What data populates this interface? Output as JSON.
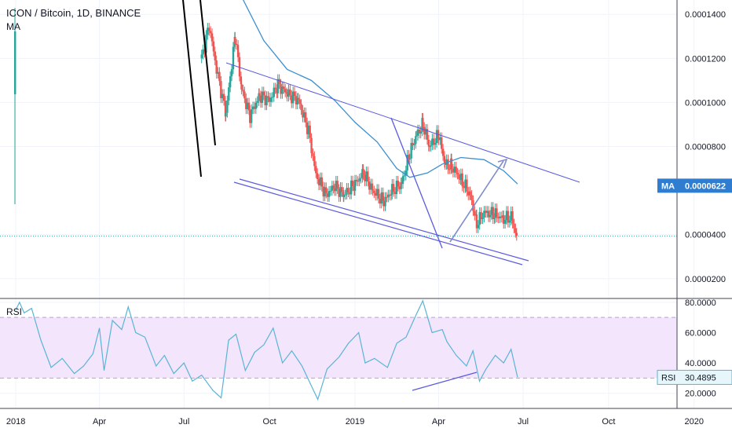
{
  "header": {
    "title": "ICON / Bitcoin, 1D, BINANCE",
    "indicator": "MA"
  },
  "rsi_panel": {
    "label": "RSI"
  },
  "colors": {
    "up": "#26a69a",
    "down": "#ef5350",
    "ma": "#3c8fd0",
    "drawing": "#5b5bdf",
    "rsi": "#5ab4d6",
    "rsi_band": "#f3e5fb",
    "badge": "#2e7dd1"
  },
  "chart_data": [
    {
      "type": "candlestick",
      "title": "ICON / Bitcoin, 1D, BINANCE",
      "y_tick_labels": [
        "0.0001400",
        "0.0001200",
        "0.0001000",
        "0.0000800",
        "0.0000400",
        "0.0000200"
      ],
      "y_ticks": [
        0.00014,
        0.00012,
        0.0001,
        8e-05,
        4e-05,
        2e-05
      ],
      "x_tick_labels": [
        "2018",
        "Apr",
        "Jul",
        "Oct",
        "2019",
        "Apr",
        "Jul",
        "Oct",
        "2020"
      ],
      "x_ticks": [
        "2018-01-01",
        "2018-04-01",
        "2018-07-01",
        "2018-10-01",
        "2019-01-01",
        "2019-04-01",
        "2019-07-01",
        "2019-10-01",
        "2020-01-01"
      ],
      "ylim": [
        1.1e-05,
        0.0001465
      ],
      "xlim": [
        "2017-12-15",
        "2020-04-15"
      ],
      "ma_label": "MA",
      "ma_value_label": "0.0000622",
      "current_price": 3.93e-05,
      "price_path": [
        [
          "2018-07-20",
          0.00012
        ],
        [
          "2018-07-28",
          0.000135
        ],
        [
          "2018-08-05",
          0.000115
        ],
        [
          "2018-08-15",
          9.5e-05
        ],
        [
          "2018-08-25",
          0.00013
        ],
        [
          "2018-09-01",
          0.000106
        ],
        [
          "2018-09-10",
          9.4e-05
        ],
        [
          "2018-09-20",
          0.000103
        ],
        [
          "2018-10-01",
          0.000101
        ],
        [
          "2018-10-10",
          0.000108
        ],
        [
          "2018-10-20",
          0.000104
        ],
        [
          "2018-11-01",
          0.000101
        ],
        [
          "2018-11-12",
          8.7e-05
        ],
        [
          "2018-11-20",
          6.7e-05
        ],
        [
          "2018-12-01",
          5.8e-05
        ],
        [
          "2018-12-10",
          6.2e-05
        ],
        [
          "2018-12-20",
          5.8e-05
        ],
        [
          "2019-01-01",
          6.3e-05
        ],
        [
          "2019-01-10",
          6.8e-05
        ],
        [
          "2019-01-20",
          6e-05
        ],
        [
          "2019-02-01",
          5.5e-05
        ],
        [
          "2019-02-10",
          6e-05
        ],
        [
          "2019-02-20",
          6.3e-05
        ],
        [
          "2019-03-01",
          7.7e-05
        ],
        [
          "2019-03-08",
          8.5e-05
        ],
        [
          "2019-03-15",
          9e-05
        ],
        [
          "2019-03-22",
          8e-05
        ],
        [
          "2019-04-01",
          8.5e-05
        ],
        [
          "2019-04-08",
          7.2e-05
        ],
        [
          "2019-04-15",
          7.1e-05
        ],
        [
          "2019-04-25",
          6.5e-05
        ],
        [
          "2019-05-05",
          5.8e-05
        ],
        [
          "2019-05-12",
          4.5e-05
        ],
        [
          "2019-05-20",
          5e-05
        ],
        [
          "2019-06-01",
          4.9e-05
        ],
        [
          "2019-06-10",
          4.7e-05
        ],
        [
          "2019-06-18",
          4.8e-05
        ],
        [
          "2019-06-24",
          3.93e-05
        ]
      ],
      "ma_path": [
        [
          "2018-09-01",
          0.000148
        ],
        [
          "2018-09-25",
          0.000128
        ],
        [
          "2018-10-20",
          0.000115
        ],
        [
          "2018-11-15",
          0.00011
        ],
        [
          "2018-12-10",
          0.000101
        ],
        [
          "2019-01-01",
          9.1e-05
        ],
        [
          "2019-01-25",
          8.2e-05
        ],
        [
          "2019-02-15",
          7e-05
        ],
        [
          "2019-03-01",
          6.6e-05
        ],
        [
          "2019-03-20",
          6.8e-05
        ],
        [
          "2019-04-05",
          7.2e-05
        ],
        [
          "2019-04-25",
          7.5e-05
        ],
        [
          "2019-05-20",
          7.4e-05
        ],
        [
          "2019-06-10",
          6.9e-05
        ],
        [
          "2019-06-25",
          6.3e-05
        ]
      ]
    },
    {
      "type": "line",
      "title": "RSI",
      "y_tick_labels": [
        "80.0000",
        "60.0000",
        "40.0000",
        "20.0000"
      ],
      "y_ticks": [
        80,
        60,
        40,
        20
      ],
      "ylim": [
        10,
        82
      ],
      "band": [
        30,
        70
      ],
      "value_label": "RSI",
      "value": "30.4895",
      "values": [
        [
          "2018-01-01",
          75
        ],
        [
          "2018-01-05",
          80
        ],
        [
          "2018-01-10",
          73
        ],
        [
          "2018-01-18",
          76
        ],
        [
          "2018-01-28",
          55
        ],
        [
          "2018-02-08",
          37
        ],
        [
          "2018-02-20",
          43
        ],
        [
          "2018-03-05",
          33
        ],
        [
          "2018-03-15",
          38
        ],
        [
          "2018-03-25",
          46
        ],
        [
          "2018-04-01",
          63
        ],
        [
          "2018-04-06",
          35
        ],
        [
          "2018-04-15",
          68
        ],
        [
          "2018-04-25",
          62
        ],
        [
          "2018-05-02",
          77
        ],
        [
          "2018-05-10",
          60
        ],
        [
          "2018-05-20",
          57
        ],
        [
          "2018-06-01",
          38
        ],
        [
          "2018-06-10",
          45
        ],
        [
          "2018-06-20",
          33
        ],
        [
          "2018-07-01",
          40
        ],
        [
          "2018-07-10",
          28
        ],
        [
          "2018-07-20",
          32
        ],
        [
          "2018-08-01",
          22
        ],
        [
          "2018-08-10",
          17
        ],
        [
          "2018-08-18",
          55
        ],
        [
          "2018-08-26",
          59
        ],
        [
          "2018-09-05",
          35
        ],
        [
          "2018-09-15",
          47
        ],
        [
          "2018-09-25",
          52
        ],
        [
          "2018-10-05",
          63
        ],
        [
          "2018-10-15",
          40
        ],
        [
          "2018-10-25",
          48
        ],
        [
          "2018-11-05",
          38
        ],
        [
          "2018-11-15",
          25
        ],
        [
          "2018-11-22",
          16
        ],
        [
          "2018-12-02",
          36
        ],
        [
          "2018-12-15",
          44
        ],
        [
          "2018-12-25",
          53
        ],
        [
          "2019-01-05",
          60
        ],
        [
          "2019-01-12",
          40
        ],
        [
          "2019-01-22",
          43
        ],
        [
          "2019-02-05",
          37
        ],
        [
          "2019-02-15",
          53
        ],
        [
          "2019-02-25",
          57
        ],
        [
          "2019-03-08",
          72
        ],
        [
          "2019-03-15",
          81
        ],
        [
          "2019-03-25",
          60
        ],
        [
          "2019-04-05",
          62
        ],
        [
          "2019-04-10",
          54
        ],
        [
          "2019-04-20",
          45
        ],
        [
          "2019-05-01",
          38
        ],
        [
          "2019-05-08",
          48
        ],
        [
          "2019-05-15",
          28
        ],
        [
          "2019-05-22",
          36
        ],
        [
          "2019-06-01",
          45
        ],
        [
          "2019-06-10",
          40
        ],
        [
          "2019-06-18",
          49
        ],
        [
          "2019-06-25",
          30.5
        ]
      ]
    }
  ]
}
